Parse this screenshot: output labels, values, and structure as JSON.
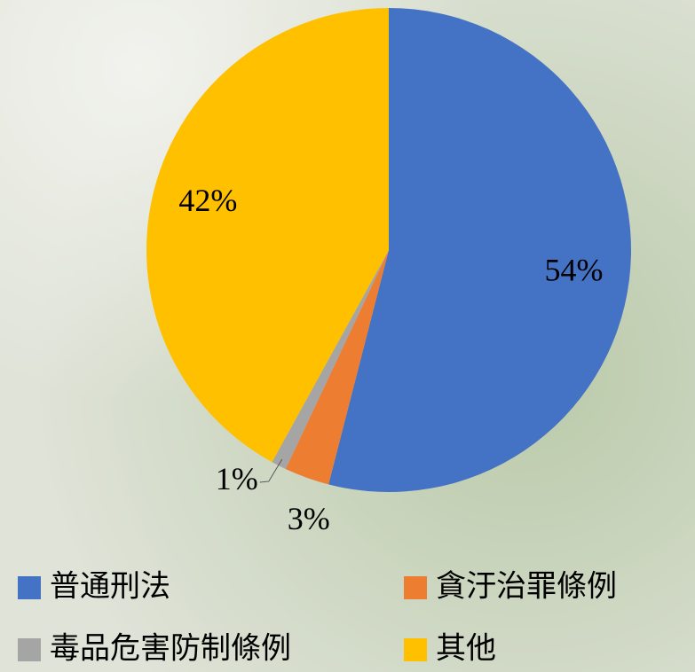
{
  "chart_data": {
    "type": "pie",
    "categories": [
      "普通刑法",
      "貪汙治罪條例",
      "毒品危害防制條例",
      "其他"
    ],
    "values": [
      54,
      3,
      1,
      42
    ],
    "value_labels": [
      "54%",
      "3%",
      "1%",
      "42%"
    ],
    "colors": [
      "#4472c4",
      "#ed7d31",
      "#a5a5a5",
      "#ffc000"
    ],
    "legend": "bottom"
  }
}
